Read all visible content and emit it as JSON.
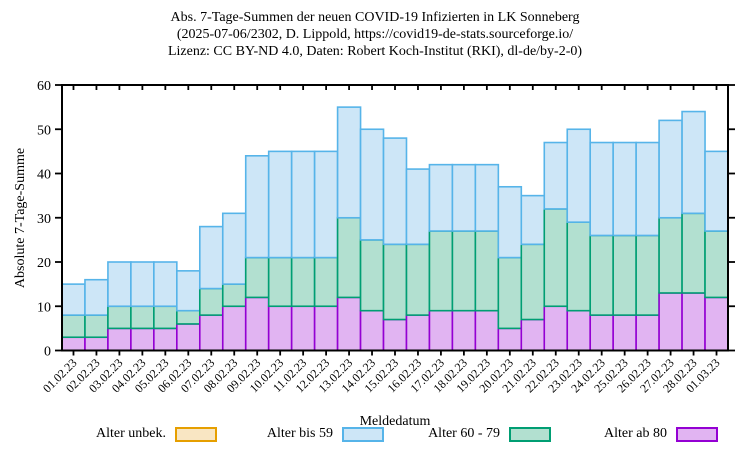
{
  "title": {
    "line1": "Abs. 7-Tage-Summen der neuen COVID-19 Infizierten in LK Sonneberg",
    "line2": "(2025-07-06/2302, D. Lippold, https://covid19-de-stats.sourceforge.io/",
    "line3": "Lizenz: CC BY-ND 4.0, Daten: Robert Koch-Institut (RKI), dl-de/by-2-0)"
  },
  "axes": {
    "y_label": "Absolute 7-Tage-Summe",
    "x_label": "Meldedatum"
  },
  "legend": {
    "entries": [
      {
        "label": "Alter unbek.",
        "fill": "#f9e6c3",
        "stroke": "#e69f00"
      },
      {
        "label": "Alter bis 59",
        "fill": "#cde6f7",
        "stroke": "#56b4e9"
      },
      {
        "label": "Alter 60 - 79",
        "fill": "#b2e0d0",
        "stroke": "#009e73"
      },
      {
        "label": "Alter ab 80",
        "fill": "#e1b4f2",
        "stroke": "#9400d3"
      }
    ]
  },
  "chart_data": {
    "type": "bar",
    "stacked": true,
    "title": "Abs. 7-Tage-Summen der neuen COVID-19 Infizierten in LK Sonneberg (2025-07-06/2302, D. Lippold, https://covid19-de-stats.sourceforge.io/ Lizenz: CC BY-ND 4.0, Daten: Robert Koch-Institut (RKI), dl-de/by-2-0)",
    "xlabel": "Meldedatum",
    "ylabel": "Absolute 7-Tage-Summe",
    "ylim": [
      0,
      60
    ],
    "ytick_step": 10,
    "grid": false,
    "legend_position": "bottom",
    "categories": [
      "01.02.23",
      "02.02.23",
      "03.02.23",
      "04.02.23",
      "05.02.23",
      "06.02.23",
      "07.02.23",
      "08.02.23",
      "09.02.23",
      "10.02.23",
      "11.02.23",
      "12.02.23",
      "13.02.23",
      "14.02.23",
      "15.02.23",
      "16.02.23",
      "17.02.23",
      "18.02.23",
      "19.02.23",
      "20.02.23",
      "21.02.23",
      "22.02.23",
      "23.02.23",
      "24.02.23",
      "25.02.23",
      "26.02.23",
      "27.02.23",
      "28.02.23",
      "01.03.23"
    ],
    "series": [
      {
        "name": "Alter unbek.",
        "fill": "#f9e6c3",
        "stroke": "#e69f00",
        "values": [
          0,
          0,
          0,
          0,
          0,
          0,
          0,
          0,
          0,
          0,
          0,
          0,
          0,
          0,
          0,
          0,
          0,
          0,
          0,
          0,
          0,
          0,
          0,
          0,
          0,
          0,
          0,
          0,
          0
        ]
      },
      {
        "name": "Alter ab 80",
        "fill": "#e1b4f2",
        "stroke": "#9400d3",
        "values": [
          3,
          3,
          5,
          5,
          5,
          6,
          8,
          10,
          12,
          10,
          10,
          10,
          12,
          9,
          7,
          8,
          9,
          9,
          9,
          5,
          7,
          10,
          9,
          8,
          8,
          8,
          13,
          13,
          12
        ]
      },
      {
        "name": "Alter 60 - 79",
        "fill": "#b2e0d0",
        "stroke": "#009e73",
        "values": [
          5,
          5,
          5,
          5,
          5,
          3,
          6,
          5,
          9,
          11,
          11,
          11,
          18,
          16,
          17,
          16,
          18,
          18,
          18,
          16,
          17,
          22,
          20,
          18,
          18,
          18,
          17,
          18,
          15
        ]
      },
      {
        "name": "Alter bis 59",
        "fill": "#cde6f7",
        "stroke": "#56b4e9",
        "values": [
          7,
          8,
          10,
          10,
          10,
          9,
          14,
          16,
          23,
          24,
          24,
          24,
          25,
          25,
          24,
          17,
          15,
          15,
          15,
          16,
          11,
          15,
          21,
          21,
          21,
          21,
          22,
          23,
          18
        ]
      }
    ],
    "totals": [
      15,
      16,
      20,
      20,
      20,
      18,
      28,
      31,
      44,
      45,
      45,
      45,
      55,
      50,
      48,
      41,
      42,
      42,
      42,
      37,
      35,
      47,
      50,
      47,
      47,
      47,
      52,
      54,
      45
    ]
  }
}
